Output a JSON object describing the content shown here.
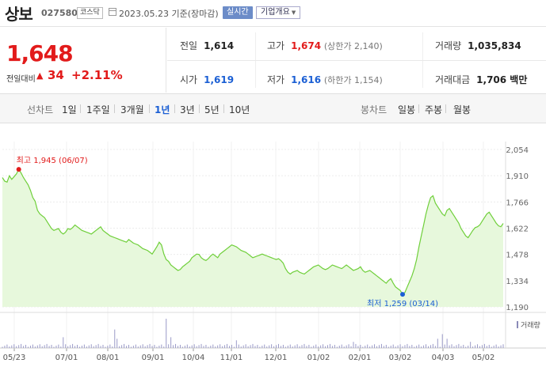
{
  "header": {
    "name": "상보",
    "code": "027580",
    "market": "코스닥",
    "date_text": "2023.05.23  기준(장마감)",
    "realtime_label": "실시간",
    "overview_label": "기업개요"
  },
  "price": {
    "current": "1,648",
    "change_label": "전일대비",
    "change_value": "34",
    "change_pct": "+2.11%"
  },
  "stats": {
    "prev_close": {
      "label": "전일",
      "value": "1,614"
    },
    "high": {
      "label": "고가",
      "value": "1,674",
      "sub": "(상한가 2,140)"
    },
    "volume": {
      "label": "거래량",
      "value": "1,035,834"
    },
    "open": {
      "label": "시가",
      "value": "1,619"
    },
    "low": {
      "label": "저가",
      "value": "1,616",
      "sub": "(하한가 1,154)"
    },
    "amount": {
      "label": "거래대금",
      "value": "1,706 백만"
    }
  },
  "toolbar": {
    "line_label": "선차트",
    "periods": [
      "1일",
      "1주일",
      "3개월",
      "1년",
      "3년",
      "5년",
      "10년"
    ],
    "active_period": "1년",
    "candle_label": "봉차트",
    "candles": [
      "일봉",
      "주봉",
      "월봉"
    ]
  },
  "colors": {
    "up": "#e21b1b",
    "down": "#1b5fd4",
    "line": "#6fcf3a",
    "fill": "#e7f8dc"
  },
  "chart_data": {
    "type": "area",
    "y_ticks": [
      "2,054",
      "1,910",
      "1,766",
      "1,622",
      "1,478",
      "1,334",
      "1,190"
    ],
    "ylim": [
      1190,
      2054
    ],
    "x_ticks": [
      "05/23",
      "07/01",
      "08/01",
      "09/01",
      "10/04",
      "11/01",
      "12/01",
      "01/02",
      "02/01",
      "03/02",
      "04/03",
      "05/02"
    ],
    "max_annotation": "최고 1,945 (06/07)",
    "min_annotation": "최저 1,259 (03/14)",
    "volume_legend": "거래량",
    "series": [
      {
        "values": [
          1900,
          1880,
          1875,
          1910,
          1890,
          1905,
          1920,
          1945,
          1925,
          1900,
          1880,
          1860,
          1830,
          1790,
          1770,
          1720,
          1700,
          1690,
          1680,
          1660,
          1640,
          1620,
          1610,
          1615,
          1620,
          1600,
          1590,
          1600,
          1620,
          1615,
          1625,
          1640,
          1630,
          1620,
          1610,
          1605,
          1600,
          1595,
          1590,
          1600,
          1610,
          1620,
          1630,
          1610,
          1600,
          1590,
          1580,
          1575,
          1570,
          1565,
          1560,
          1555,
          1550,
          1545,
          1560,
          1550,
          1540,
          1535,
          1530,
          1520,
          1510,
          1505,
          1500,
          1490,
          1480,
          1500,
          1520,
          1545,
          1530,
          1480,
          1450,
          1440,
          1420,
          1410,
          1400,
          1390,
          1395,
          1410,
          1420,
          1430,
          1440,
          1460,
          1470,
          1480,
          1478,
          1460,
          1450,
          1445,
          1455,
          1470,
          1480,
          1470,
          1460,
          1480,
          1490,
          1500,
          1510,
          1520,
          1530,
          1525,
          1520,
          1510,
          1500,
          1495,
          1490,
          1480,
          1470,
          1460,
          1465,
          1470,
          1475,
          1480,
          1475,
          1470,
          1465,
          1460,
          1455,
          1450,
          1455,
          1445,
          1430,
          1400,
          1380,
          1370,
          1380,
          1385,
          1390,
          1380,
          1375,
          1370,
          1380,
          1390,
          1400,
          1410,
          1415,
          1420,
          1410,
          1400,
          1395,
          1400,
          1410,
          1420,
          1415,
          1410,
          1405,
          1400,
          1410,
          1420,
          1410,
          1400,
          1390,
          1395,
          1400,
          1410,
          1390,
          1380,
          1385,
          1390,
          1380,
          1370,
          1360,
          1350,
          1340,
          1330,
          1320,
          1335,
          1345,
          1320,
          1300,
          1290,
          1280,
          1259,
          1270,
          1300,
          1330,
          1360,
          1400,
          1450,
          1520,
          1580,
          1640,
          1700,
          1750,
          1790,
          1800,
          1760,
          1740,
          1720,
          1700,
          1690,
          1720,
          1730,
          1710,
          1690,
          1670,
          1650,
          1620,
          1600,
          1580,
          1570,
          1590,
          1610,
          1625,
          1630,
          1640,
          1660,
          1680,
          1700,
          1710,
          1690,
          1670,
          1650,
          1635,
          1630,
          1648
        ]
      }
    ]
  }
}
